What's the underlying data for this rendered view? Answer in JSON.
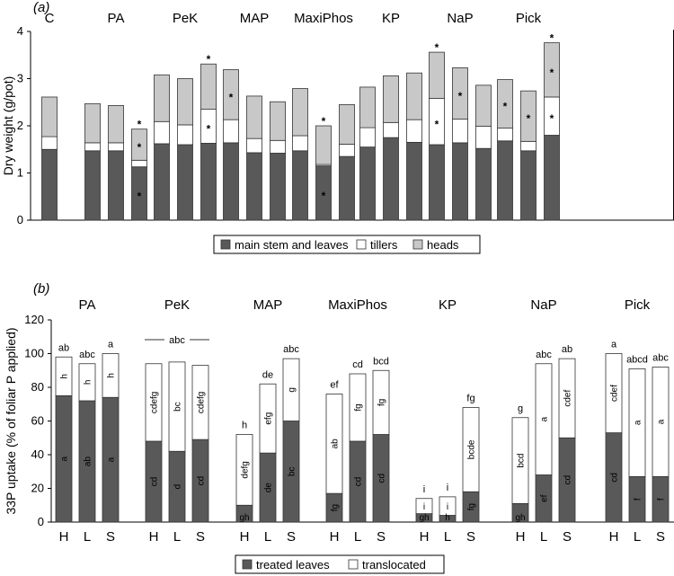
{
  "chart_data": [
    {
      "type": "bar",
      "stacked": true,
      "panel_label": "(a)",
      "ylabel": "Dry weight (g/pot)",
      "ylim": [
        0,
        4
      ],
      "yticks": [
        0,
        1,
        2,
        3,
        4
      ],
      "colors": {
        "main": "#595959",
        "tillers": "#ffffff",
        "heads": "#c8c8c8"
      },
      "legend": [
        "main stem and leaves",
        "tillers",
        "heads"
      ],
      "groups": [
        {
          "label": "C",
          "bars": [
            {
              "main": 1.5,
              "tillers": 0.27,
              "heads": 0.84,
              "stars": []
            }
          ]
        },
        {
          "label": "PA",
          "bars": [
            {
              "main": 1.47,
              "tillers": 0.17,
              "heads": 0.83,
              "stars": []
            },
            {
              "main": 1.47,
              "tillers": 0.17,
              "heads": 0.79,
              "stars": []
            },
            {
              "main": 1.13,
              "tillers": 0.14,
              "heads": 0.66,
              "stars": [
                "main",
                "heads",
                "top"
              ]
            }
          ]
        },
        {
          "label": "PeK",
          "bars": [
            {
              "main": 1.62,
              "tillers": 0.47,
              "heads": 0.99,
              "stars": []
            },
            {
              "main": 1.6,
              "tillers": 0.42,
              "heads": 0.98,
              "stars": []
            },
            {
              "main": 1.63,
              "tillers": 0.72,
              "heads": 0.96,
              "stars": [
                "tillers",
                "top"
              ]
            }
          ]
        },
        {
          "label": "MAP",
          "bars": [
            {
              "main": 1.64,
              "tillers": 0.49,
              "heads": 1.06,
              "stars": [
                "heads"
              ]
            },
            {
              "main": 1.43,
              "tillers": 0.3,
              "heads": 0.9,
              "stars": []
            },
            {
              "main": 1.42,
              "tillers": 0.27,
              "heads": 0.82,
              "stars": []
            }
          ]
        },
        {
          "label": "MaxiPhos",
          "bars": [
            {
              "main": 1.47,
              "tillers": 0.32,
              "heads": 1.0,
              "stars": []
            },
            {
              "main": 1.15,
              "tillers": 0.03,
              "heads": 0.82,
              "stars": [
                "main",
                "top"
              ]
            },
            {
              "main": 1.35,
              "tillers": 0.26,
              "heads": 0.84,
              "stars": []
            }
          ]
        },
        {
          "label": "KP",
          "bars": [
            {
              "main": 1.55,
              "tillers": 0.41,
              "heads": 0.86,
              "stars": []
            },
            {
              "main": 1.75,
              "tillers": 0.32,
              "heads": 0.99,
              "stars": []
            },
            {
              "main": 1.65,
              "tillers": 0.48,
              "heads": 0.99,
              "stars": []
            }
          ]
        },
        {
          "label": "NaP",
          "bars": [
            {
              "main": 1.6,
              "tillers": 0.98,
              "heads": 0.98,
              "stars": [
                "tillers",
                "top"
              ]
            },
            {
              "main": 1.64,
              "tillers": 0.5,
              "heads": 1.09,
              "stars": [
                "heads"
              ]
            },
            {
              "main": 1.52,
              "tillers": 0.47,
              "heads": 0.87,
              "stars": []
            }
          ]
        },
        {
          "label": "Pick",
          "bars": [
            {
              "main": 1.68,
              "tillers": 0.27,
              "heads": 1.03,
              "stars": [
                "heads"
              ]
            },
            {
              "main": 1.47,
              "tillers": 0.2,
              "heads": 1.07,
              "stars": [
                "heads"
              ]
            },
            {
              "main": 1.8,
              "tillers": 0.81,
              "heads": 1.15,
              "stars": [
                "tillers",
                "heads",
                "top"
              ]
            }
          ]
        }
      ]
    },
    {
      "type": "bar",
      "stacked": true,
      "panel_label": "(b)",
      "ylabel": "33P uptake (% of foliar P applied)",
      "ylim": [
        0,
        120
      ],
      "yticks": [
        0,
        20,
        40,
        60,
        80,
        100,
        120
      ],
      "colors": {
        "treated": "#595959",
        "translocated": "#ffffff"
      },
      "legend": [
        "treated leaves",
        "translocated"
      ],
      "groups": [
        {
          "label": "PA",
          "bars": [
            {
              "x": "H",
              "treated": 75,
              "translocated": 23,
              "treated_label": "a",
              "trans_label": "h",
              "total_label": "ab"
            },
            {
              "x": "L",
              "treated": 72,
              "translocated": 22,
              "treated_label": "ab",
              "trans_label": "h",
              "total_label": "abc"
            },
            {
              "x": "S",
              "treated": 74,
              "translocated": 26,
              "treated_label": "a",
              "trans_label": "h",
              "total_label": "a"
            }
          ]
        },
        {
          "label": "PeK",
          "group_total_label": "abc",
          "bars": [
            {
              "x": "H",
              "treated": 48,
              "translocated": 46,
              "treated_label": "cd",
              "trans_label": "cdefg",
              "total_label": ""
            },
            {
              "x": "L",
              "treated": 42,
              "translocated": 53,
              "treated_label": "d",
              "trans_label": "bc",
              "total_label": ""
            },
            {
              "x": "S",
              "treated": 49,
              "translocated": 44,
              "treated_label": "cd",
              "trans_label": "cdefg",
              "total_label": ""
            }
          ]
        },
        {
          "label": "MAP",
          "bars": [
            {
              "x": "H",
              "treated": 10,
              "translocated": 42,
              "treated_label": "gh",
              "trans_label": "defg",
              "total_label": "h"
            },
            {
              "x": "L",
              "treated": 41,
              "translocated": 41,
              "treated_label": "de",
              "trans_label": "efg",
              "total_label": "de"
            },
            {
              "x": "S",
              "treated": 60,
              "translocated": 37,
              "treated_label": "bc",
              "trans_label": "g",
              "total_label": "abc"
            }
          ]
        },
        {
          "label": "MaxiPhos",
          "bars": [
            {
              "x": "H",
              "treated": 17,
              "translocated": 59,
              "treated_label": "fg",
              "trans_label": "ab",
              "total_label": "ef"
            },
            {
              "x": "L",
              "treated": 48,
              "translocated": 40,
              "treated_label": "cd",
              "trans_label": "fg",
              "total_label": "cd"
            },
            {
              "x": "S",
              "treated": 52,
              "translocated": 38,
              "treated_label": "cd",
              "trans_label": "fg",
              "total_label": "bcd"
            }
          ]
        },
        {
          "label": "KP",
          "bars": [
            {
              "x": "H",
              "treated": 5,
              "translocated": 9,
              "treated_label": "gh",
              "trans_label": "i",
              "total_label": "i"
            },
            {
              "x": "L",
              "treated": 4,
              "translocated": 11,
              "treated_label": "h",
              "trans_label": "i",
              "total_label": "i"
            },
            {
              "x": "S",
              "treated": 18,
              "translocated": 50,
              "treated_label": "fg",
              "trans_label": "bcde",
              "total_label": "fg"
            }
          ]
        },
        {
          "label": "NaP",
          "bars": [
            {
              "x": "H",
              "treated": 11,
              "translocated": 51,
              "treated_label": "gh",
              "trans_label": "bcd",
              "total_label": "g"
            },
            {
              "x": "L",
              "treated": 28,
              "translocated": 66,
              "treated_label": "ef",
              "trans_label": "a",
              "total_label": "abc"
            },
            {
              "x": "S",
              "treated": 50,
              "translocated": 47,
              "treated_label": "cd",
              "trans_label": "cdef",
              "total_label": "ab"
            }
          ]
        },
        {
          "label": "Pick",
          "bars": [
            {
              "x": "H",
              "treated": 53,
              "translocated": 47,
              "treated_label": "cd",
              "trans_label": "cdef",
              "total_label": "a"
            },
            {
              "x": "L",
              "treated": 27,
              "translocated": 64,
              "treated_label": "f",
              "trans_label": "a",
              "total_label": "abcd"
            },
            {
              "x": "S",
              "treated": 27,
              "translocated": 65,
              "treated_label": "f",
              "trans_label": "a",
              "total_label": "abc"
            }
          ]
        }
      ]
    }
  ]
}
